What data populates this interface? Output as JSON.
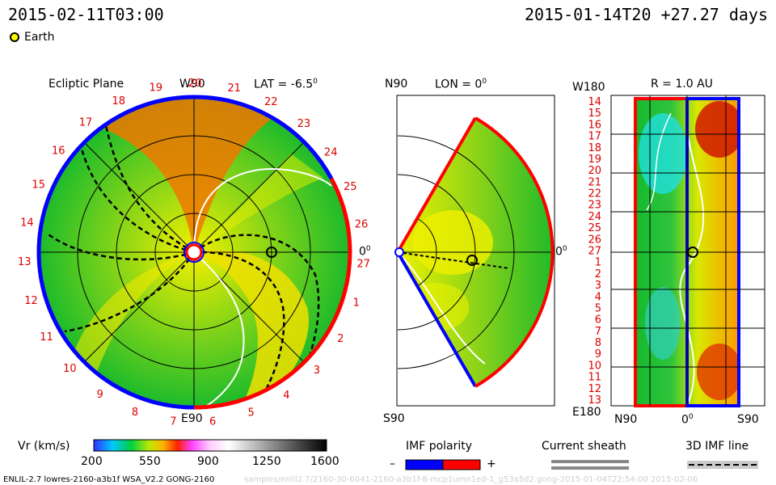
{
  "header": {
    "left_timestamp": "2015-02-11T03:00",
    "right_timestamp": "2015-01-14T20 +27.27 days"
  },
  "legend": {
    "earth_label": "Earth",
    "earth_color": "#ffff00"
  },
  "panel_ecliptic": {
    "title": "Ecliptic Plane",
    "lat_label": "LAT = -6.5",
    "lat_sup": "0",
    "top_label": "W90",
    "bottom_label": "E90",
    "right_label": "0",
    "right_sup": "0",
    "carrington_ticks": [
      "19",
      "20",
      "21",
      "22",
      "23",
      "24",
      "25",
      "26",
      "27",
      "1",
      "2",
      "3",
      "4",
      "5",
      "6",
      "7",
      "8",
      "9",
      "10",
      "11",
      "12",
      "13",
      "14",
      "15",
      "16",
      "17",
      "18"
    ]
  },
  "panel_meridional": {
    "top_label": "N90",
    "lon_label": "LON = 0",
    "lon_sup": "0",
    "bottom_label": "S90",
    "right_label": "0",
    "right_sup": "0"
  },
  "panel_sphere": {
    "top_left_label": "W180",
    "title": "R = 1.0 AU",
    "bottom_left_label": "E180",
    "x_labels": [
      "N90",
      "0",
      "S90"
    ],
    "x_sup": "0",
    "y_ticks": [
      "14",
      "15",
      "16",
      "17",
      "18",
      "19",
      "20",
      "21",
      "22",
      "23",
      "24",
      "25",
      "26",
      "27",
      "1",
      "2",
      "3",
      "4",
      "5",
      "6",
      "7",
      "8",
      "9",
      "10",
      "11",
      "12",
      "13"
    ]
  },
  "colorbar": {
    "title": "Vr (km/s)",
    "ticks": [
      "200",
      "550",
      "900",
      "1250",
      "1600"
    ]
  },
  "imf": {
    "title": "IMF polarity",
    "minus": "–",
    "plus": "+",
    "negative_color": "#0000ff",
    "positive_color": "#ff0000"
  },
  "sheath": {
    "title": "Current sheath"
  },
  "imf3d": {
    "title": "3D IMF line"
  },
  "footer": {
    "model_info": "ENLIL-2.7 lowres-2160-a3b1f WSA_V2.2 GONG-2160",
    "faint_path": "samples/enlil2.7/2160-30-6041-2160-a3b1f-8-mcp1umn1ed-1_g53a5d2.gong-2015-01-04T22:54:00  2015-02-06"
  }
}
